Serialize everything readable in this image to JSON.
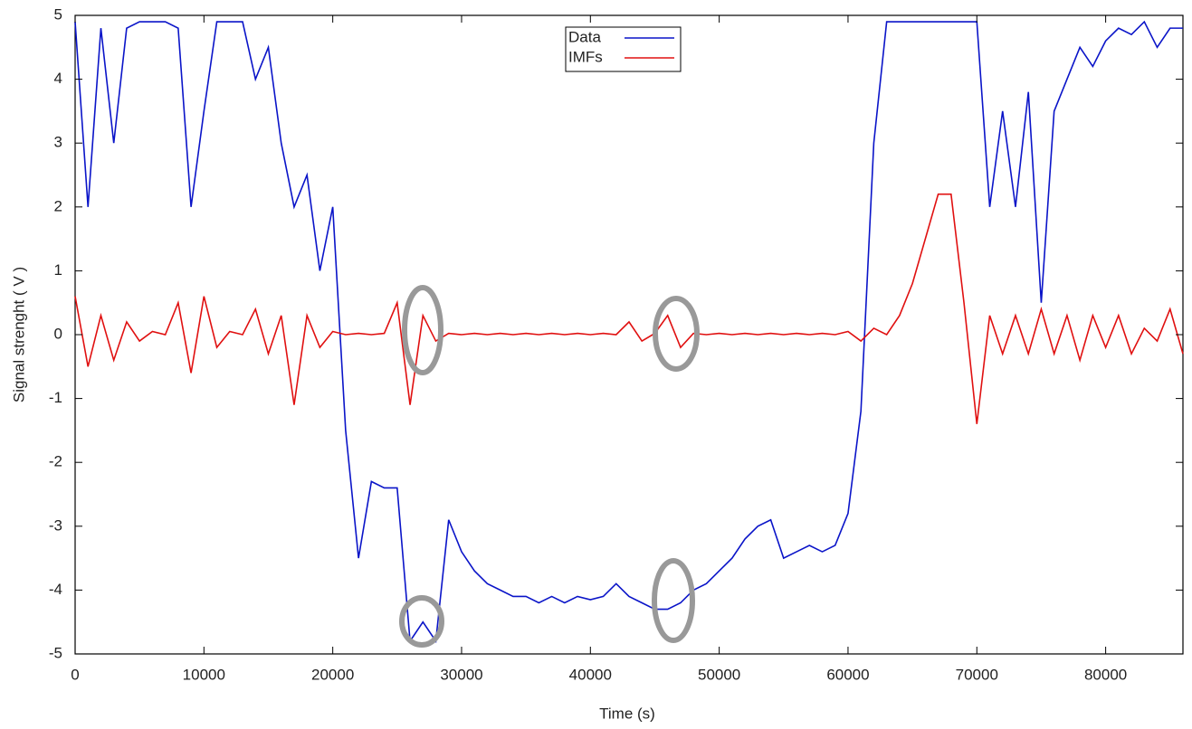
{
  "chart_data": {
    "type": "line",
    "xlabel": "Time (s)",
    "ylabel": "Signal strenght ( V )",
    "x": [
      0,
      1000,
      2000,
      3000,
      4000,
      5000,
      6000,
      7000,
      8000,
      9000,
      10000,
      11000,
      12000,
      13000,
      14000,
      15000,
      16000,
      17000,
      18000,
      19000,
      20000,
      21000,
      22000,
      23000,
      24000,
      25000,
      26000,
      27000,
      28000,
      29000,
      30000,
      31000,
      32000,
      33000,
      34000,
      35000,
      36000,
      37000,
      38000,
      39000,
      40000,
      41000,
      42000,
      43000,
      44000,
      45000,
      46000,
      47000,
      48000,
      49000,
      50000,
      51000,
      52000,
      53000,
      54000,
      55000,
      56000,
      57000,
      58000,
      59000,
      60000,
      61000,
      62000,
      63000,
      64000,
      65000,
      66000,
      67000,
      68000,
      69000,
      70000,
      71000,
      72000,
      73000,
      74000,
      75000,
      76000,
      77000,
      78000,
      79000,
      80000,
      81000,
      82000,
      83000,
      84000,
      85000,
      86000
    ],
    "series": [
      {
        "name": "Data",
        "color": "#0a14c8",
        "values": [
          4.9,
          2.0,
          4.8,
          3.0,
          4.8,
          4.9,
          4.9,
          4.9,
          4.8,
          2.0,
          3.5,
          4.9,
          4.9,
          4.9,
          4.0,
          4.5,
          3.0,
          2.0,
          2.5,
          1.0,
          2.0,
          -1.5,
          -3.5,
          -2.3,
          -2.4,
          -2.4,
          -4.8,
          -4.5,
          -4.8,
          -2.9,
          -3.4,
          -3.7,
          -3.9,
          -4.0,
          -4.1,
          -4.1,
          -4.2,
          -4.1,
          -4.2,
          -4.1,
          -4.15,
          -4.1,
          -3.9,
          -4.1,
          -4.2,
          -4.3,
          -4.3,
          -4.2,
          -4.0,
          -3.9,
          -3.7,
          -3.5,
          -3.2,
          -3.0,
          -2.9,
          -3.5,
          -3.4,
          -3.3,
          -3.4,
          -3.3,
          -2.8,
          -1.2,
          3.0,
          4.9,
          4.9,
          4.9,
          4.9,
          4.9,
          4.9,
          4.9,
          4.9,
          2.0,
          3.5,
          2.0,
          3.8,
          0.5,
          3.5,
          4.0,
          4.5,
          4.2,
          4.6,
          4.8,
          4.7,
          4.9,
          4.5,
          4.8,
          4.8
        ]
      },
      {
        "name": "IMFs",
        "color": "#e01010",
        "values": [
          0.6,
          -0.5,
          0.3,
          -0.4,
          0.2,
          -0.1,
          0.05,
          0.0,
          0.5,
          -0.6,
          0.6,
          -0.2,
          0.05,
          0.0,
          0.4,
          -0.3,
          0.3,
          -1.1,
          0.3,
          -0.2,
          0.05,
          0.0,
          0.02,
          0.0,
          0.02,
          0.5,
          -1.1,
          0.3,
          -0.1,
          0.02,
          0.0,
          0.02,
          0.0,
          0.02,
          0.0,
          0.02,
          0.0,
          0.02,
          0.0,
          0.02,
          0.0,
          0.02,
          0.0,
          0.2,
          -0.1,
          0.02,
          0.3,
          -0.2,
          0.02,
          0.0,
          0.02,
          0.0,
          0.02,
          0.0,
          0.02,
          0.0,
          0.02,
          0.0,
          0.02,
          0.0,
          0.05,
          -0.1,
          0.1,
          0.0,
          0.3,
          0.8,
          1.5,
          2.2,
          2.2,
          0.5,
          -1.4,
          0.3,
          -0.3,
          0.3,
          -0.3,
          0.4,
          -0.3,
          0.3,
          -0.4,
          0.3,
          -0.2,
          0.3,
          -0.3,
          0.1,
          -0.1,
          0.4,
          -0.3
        ]
      }
    ],
    "xlim": [
      0,
      86000
    ],
    "ylim": [
      -5,
      5
    ],
    "xticks": [
      0,
      10000,
      20000,
      30000,
      40000,
      50000,
      60000,
      70000,
      80000
    ],
    "yticks": [
      -5,
      -4,
      -3,
      -2,
      -1,
      0,
      1,
      2,
      3,
      4,
      5
    ],
    "legend": "upper center"
  }
}
